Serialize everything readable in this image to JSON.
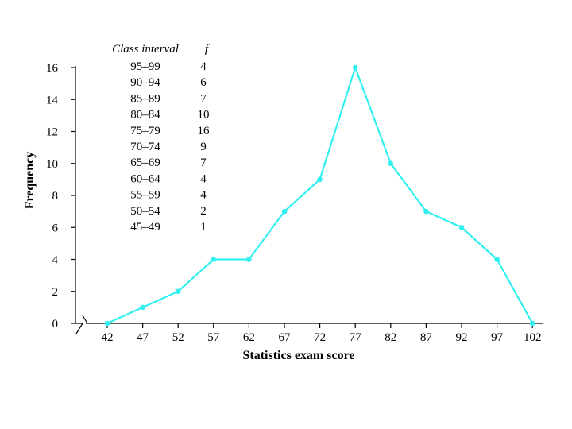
{
  "chart_data": {
    "type": "line",
    "title": "",
    "xlabel": "Statistics exam score",
    "ylabel": "Frequency",
    "x": [
      42,
      47,
      52,
      57,
      62,
      67,
      72,
      77,
      82,
      87,
      92,
      97,
      102
    ],
    "y": [
      0,
      1,
      2,
      4,
      4,
      7,
      9,
      16,
      10,
      7,
      6,
      4,
      0
    ],
    "x_tick_labels": [
      "42",
      "47",
      "52",
      "57",
      "62",
      "67",
      "72",
      "77",
      "82",
      "87",
      "92",
      "97",
      "102"
    ],
    "y_ticks": [
      0,
      2,
      4,
      6,
      8,
      10,
      12,
      14,
      16
    ],
    "ylim": [
      0,
      16
    ],
    "grid": false,
    "axis_break": true,
    "series_color": "#33f0f0",
    "frequency_table": {
      "headers": [
        "Class interval",
        "f"
      ],
      "rows": [
        [
          "95–99",
          "4"
        ],
        [
          "90–94",
          "6"
        ],
        [
          "85–89",
          "7"
        ],
        [
          "80–84",
          "10"
        ],
        [
          "75–79",
          "16"
        ],
        [
          "70–74",
          "9"
        ],
        [
          "65–69",
          "7"
        ],
        [
          "60–64",
          "4"
        ],
        [
          "55–59",
          "4"
        ],
        [
          "50–54",
          "2"
        ],
        [
          "45–49",
          "1"
        ]
      ]
    }
  }
}
